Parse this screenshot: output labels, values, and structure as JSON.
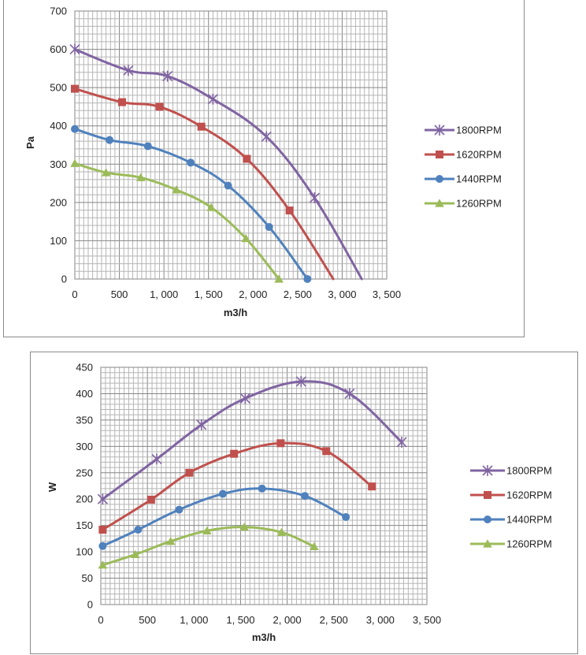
{
  "chart_data": [
    {
      "type": "line",
      "title": "",
      "xlabel": "m3/h",
      "ylabel": "Pa",
      "xlim": [
        0,
        3500
      ],
      "ylim": [
        0,
        700
      ],
      "xticks": [
        0,
        500,
        1000,
        1500,
        2000,
        2500,
        3000,
        3500
      ],
      "yticks": [
        0,
        100,
        200,
        300,
        400,
        500,
        600,
        700
      ],
      "xtick_labels": [
        "0",
        "500",
        "1, 000",
        "1, 500",
        "2, 000",
        "2, 500",
        "3, 000",
        "3, 500"
      ],
      "ytick_labels": [
        "0",
        "100",
        "200",
        "300",
        "400",
        "500",
        "600",
        "700"
      ],
      "grid": true,
      "legend_position": "right",
      "series": [
        {
          "name": "1800RPM",
          "color": "#8064a2",
          "marker": "star",
          "points": [
            [
              0,
              600
            ],
            [
              600,
              545
            ],
            [
              1040,
              530
            ],
            [
              1550,
              470
            ],
            [
              2150,
              372
            ],
            [
              2690,
              212
            ],
            [
              3220,
              0
            ]
          ],
          "marked": [
            0,
            1,
            2,
            3,
            4,
            5
          ]
        },
        {
          "name": "1620RPM",
          "color": "#c0504d",
          "marker": "square",
          "points": [
            [
              0,
              497
            ],
            [
              530,
              462
            ],
            [
              950,
              450
            ],
            [
              1420,
              398
            ],
            [
              1930,
              314
            ],
            [
              2410,
              179
            ],
            [
              2900,
              0
            ]
          ],
          "marked": [
            0,
            1,
            2,
            3,
            4,
            5
          ]
        },
        {
          "name": "1440RPM",
          "color": "#4f81bd",
          "marker": "circle",
          "points": [
            [
              0,
              392
            ],
            [
              390,
              363
            ],
            [
              820,
              347
            ],
            [
              1300,
              304
            ],
            [
              1720,
              244
            ],
            [
              2180,
              136
            ],
            [
              2610,
              0
            ]
          ],
          "marked": [
            0,
            1,
            2,
            3,
            4,
            5,
            6
          ]
        },
        {
          "name": "1260RPM",
          "color": "#9bbb59",
          "marker": "triangle",
          "points": [
            [
              0,
              302
            ],
            [
              350,
              278
            ],
            [
              740,
              265
            ],
            [
              1140,
              233
            ],
            [
              1530,
              187
            ],
            [
              1920,
              106
            ],
            [
              2290,
              0
            ]
          ],
          "marked": [
            0,
            1,
            2,
            3,
            4,
            5,
            6
          ]
        }
      ]
    },
    {
      "type": "line",
      "title": "",
      "xlabel": "m3/h",
      "ylabel": "W",
      "xlim": [
        0,
        3500
      ],
      "ylim": [
        0,
        450
      ],
      "xticks": [
        0,
        500,
        1000,
        1500,
        2000,
        2500,
        3000,
        3500
      ],
      "yticks": [
        0,
        50,
        100,
        150,
        200,
        250,
        300,
        350,
        400,
        450
      ],
      "xtick_labels": [
        "0",
        "500",
        "1, 000",
        "1, 500",
        "2, 000",
        "2, 500",
        "3, 000",
        "3, 500"
      ],
      "ytick_labels": [
        "0",
        "50",
        "100",
        "150",
        "200",
        "250",
        "300",
        "350",
        "400",
        "450"
      ],
      "grid": true,
      "legend_position": "right",
      "series": [
        {
          "name": "1800RPM",
          "color": "#8064a2",
          "marker": "star",
          "points": [
            [
              20,
              200
            ],
            [
              600,
              276
            ],
            [
              1080,
              341
            ],
            [
              1550,
              391
            ],
            [
              2150,
              423
            ],
            [
              2670,
              400
            ],
            [
              3230,
              308
            ]
          ],
          "marked": [
            0,
            1,
            2,
            3,
            4,
            5,
            6
          ]
        },
        {
          "name": "1620RPM",
          "color": "#c0504d",
          "marker": "square",
          "points": [
            [
              20,
              142
            ],
            [
              540,
              199
            ],
            [
              950,
              250
            ],
            [
              1430,
              286
            ],
            [
              1930,
              306
            ],
            [
              2420,
              291
            ],
            [
              2910,
              224
            ]
          ],
          "marked": [
            0,
            1,
            2,
            3,
            4,
            5,
            6
          ]
        },
        {
          "name": "1440RPM",
          "color": "#4f81bd",
          "marker": "circle",
          "points": [
            [
              20,
              111
            ],
            [
              400,
              142
            ],
            [
              840,
              180
            ],
            [
              1310,
              210
            ],
            [
              1730,
              220
            ],
            [
              2190,
              206
            ],
            [
              2630,
              166
            ]
          ],
          "marked": [
            0,
            1,
            2,
            3,
            4,
            5,
            6
          ]
        },
        {
          "name": "1260RPM",
          "color": "#9bbb59",
          "marker": "triangle",
          "points": [
            [
              20,
              75
            ],
            [
              370,
              95
            ],
            [
              750,
              120
            ],
            [
              1140,
              140
            ],
            [
              1540,
              147
            ],
            [
              1940,
              137
            ],
            [
              2290,
              110
            ]
          ],
          "marked": [
            0,
            1,
            2,
            3,
            4,
            5,
            6
          ]
        }
      ]
    }
  ]
}
